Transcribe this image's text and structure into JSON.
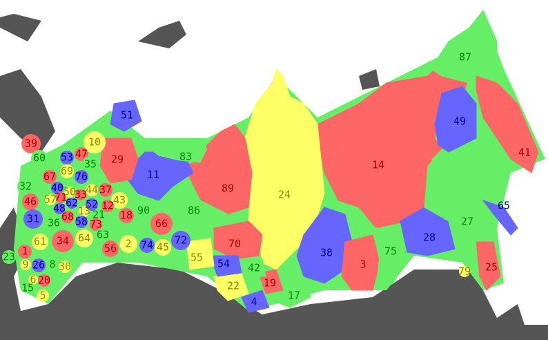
{
  "regions": [
    {
      "label": "14",
      "fill": "#ff6666"
    },
    {
      "label": "24",
      "fill": "#ffff66"
    },
    {
      "label": "87",
      "fill": "#66ee66"
    },
    {
      "label": "49",
      "fill": "#6666ff"
    },
    {
      "label": "41",
      "fill": "#ff6666"
    },
    {
      "label": "89",
      "fill": "#ff6666"
    },
    {
      "label": "86",
      "fill": "#66ee66"
    },
    {
      "label": "11",
      "fill": "#6666ff"
    },
    {
      "label": "83",
      "fill": "#66ee66"
    },
    {
      "label": "29",
      "fill": "#ff6666"
    },
    {
      "label": "51",
      "fill": "#6666ff"
    },
    {
      "label": "38",
      "fill": "#6666ff"
    },
    {
      "label": "3",
      "fill": "#ff6666"
    },
    {
      "label": "75",
      "fill": "#66ee66"
    },
    {
      "label": "28",
      "fill": "#6666ff"
    },
    {
      "label": "27",
      "fill": "#66ee66"
    },
    {
      "label": "25",
      "fill": "#ff6666"
    },
    {
      "label": "65",
      "fill": "#6666ff"
    },
    {
      "label": "70",
      "fill": "#ff6666"
    },
    {
      "label": "17",
      "fill": "#66ee66"
    },
    {
      "label": "19",
      "fill": "#ff6666"
    },
    {
      "label": "4",
      "fill": "#6666ff"
    },
    {
      "label": "22",
      "fill": "#ffff66"
    },
    {
      "label": "42",
      "fill": "#66ee66"
    },
    {
      "label": "54",
      "fill": "#6666ff"
    },
    {
      "label": "55",
      "fill": "#ffff66"
    },
    {
      "label": "39",
      "fill": "#ff6666"
    },
    {
      "label": "10",
      "fill": "#ffff66"
    },
    {
      "label": "47",
      "fill": "#ff6666"
    },
    {
      "label": "53",
      "fill": "#6666ff"
    },
    {
      "label": "60",
      "fill": "#66ee66"
    },
    {
      "label": "35",
      "fill": "#66ee66"
    },
    {
      "label": "69",
      "fill": "#ffff66"
    },
    {
      "label": "67",
      "fill": "#ff6666"
    },
    {
      "label": "76",
      "fill": "#6666ff"
    },
    {
      "label": "44",
      "fill": "#ffff66"
    },
    {
      "label": "37",
      "fill": "#ff6666"
    },
    {
      "label": "40",
      "fill": "#6666ff"
    },
    {
      "label": "50",
      "fill": "#ffff66"
    },
    {
      "label": "32",
      "fill": "#66ee66"
    },
    {
      "label": "46",
      "fill": "#ff6666"
    },
    {
      "label": "71",
      "fill": "#ff6666"
    },
    {
      "label": "57",
      "fill": "#ffff66"
    },
    {
      "label": "33",
      "fill": "#ff6666"
    },
    {
      "label": "48",
      "fill": "#6666ff"
    },
    {
      "label": "62",
      "fill": "#6666ff"
    },
    {
      "label": "43",
      "fill": "#ffff66"
    },
    {
      "label": "12",
      "fill": "#ff6666"
    },
    {
      "label": "21",
      "fill": "#66ee66"
    },
    {
      "label": "13",
      "fill": "#ffff66"
    },
    {
      "label": "90",
      "fill": "#66ee66"
    },
    {
      "label": "31",
      "fill": "#6666ff"
    },
    {
      "label": "68",
      "fill": "#ff6666"
    },
    {
      "label": "58",
      "fill": "#6666ff"
    },
    {
      "label": "52",
      "fill": "#6666ff"
    },
    {
      "label": "73",
      "fill": "#ff6666"
    },
    {
      "label": "18",
      "fill": "#ff6666"
    },
    {
      "label": "36",
      "fill": "#66ee66"
    },
    {
      "label": "66",
      "fill": "#ff6666"
    },
    {
      "label": "34",
      "fill": "#ff6666"
    },
    {
      "label": "61",
      "fill": "#ffff66"
    },
    {
      "label": "64",
      "fill": "#ffff66"
    },
    {
      "label": "63",
      "fill": "#66ee66"
    },
    {
      "label": "56",
      "fill": "#ff6666"
    },
    {
      "label": "2",
      "fill": "#ffff66"
    },
    {
      "label": "74",
      "fill": "#6666ff"
    },
    {
      "label": "45",
      "fill": "#ffff66"
    },
    {
      "label": "72",
      "fill": "#6666ff"
    },
    {
      "label": "79",
      "fill": "#ffff66"
    },
    {
      "label": "1",
      "fill": "#ff6666"
    },
    {
      "label": "23",
      "fill": "#66ee66"
    },
    {
      "label": "9",
      "fill": "#ffff66"
    },
    {
      "label": "26",
      "fill": "#6666ff"
    },
    {
      "label": "8",
      "fill": "#66ee66"
    },
    {
      "label": "30",
      "fill": "#ffff66"
    },
    {
      "label": "6",
      "fill": "#ffff66"
    },
    {
      "label": "20",
      "fill": "#ff6666"
    },
    {
      "label": "15",
      "fill": "#66ee66"
    },
    {
      "label": "5",
      "fill": "#ffff66"
    }
  ]
}
